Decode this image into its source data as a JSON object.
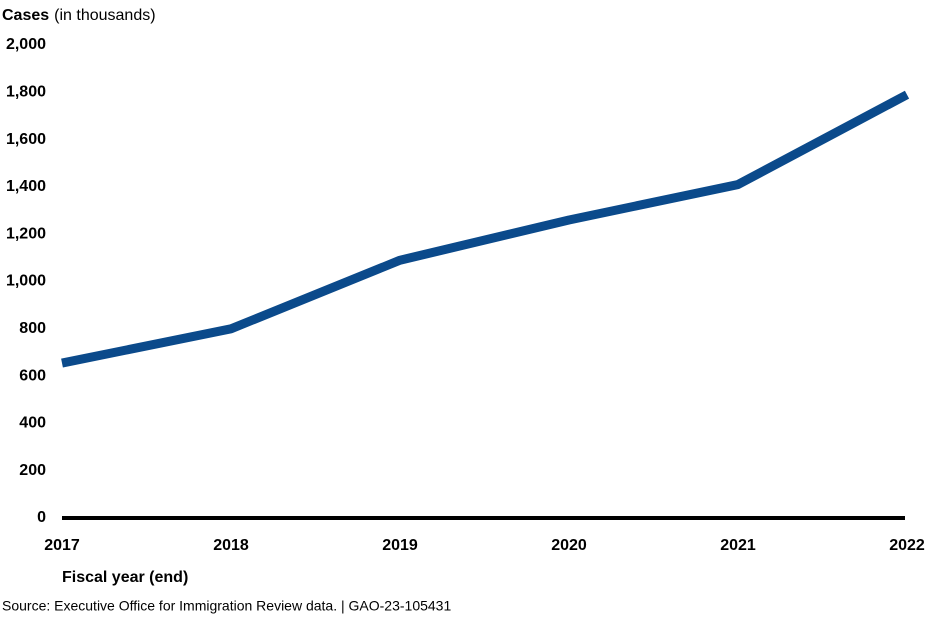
{
  "chart_data": {
    "type": "line",
    "y_label": "Cases",
    "y_label_note": "(in thousands)",
    "x_label": "Fiscal year (end)",
    "source": "Source: Executive Office for Immigration Review data.  |  GAO-23-105431",
    "categories": [
      "2017",
      "2018",
      "2019",
      "2020",
      "2021",
      "2022"
    ],
    "series": [
      {
        "name": "Cases",
        "color": "#0b4a8b",
        "values": [
          655,
          800,
          1090,
          1260,
          1410,
          1790
        ]
      }
    ],
    "ylim": [
      0,
      2000
    ],
    "yticks": [
      0,
      200,
      400,
      600,
      800,
      {
        "value": 1000,
        "label": "1,000"
      },
      {
        "value": 1200,
        "label": "1,200"
      },
      {
        "value": 1400,
        "label": "1,400"
      },
      {
        "value": 1600,
        "label": "1,600"
      },
      {
        "value": 1800,
        "label": "1,800"
      },
      {
        "value": 2000,
        "label": "2,000"
      }
    ],
    "grid": false
  }
}
